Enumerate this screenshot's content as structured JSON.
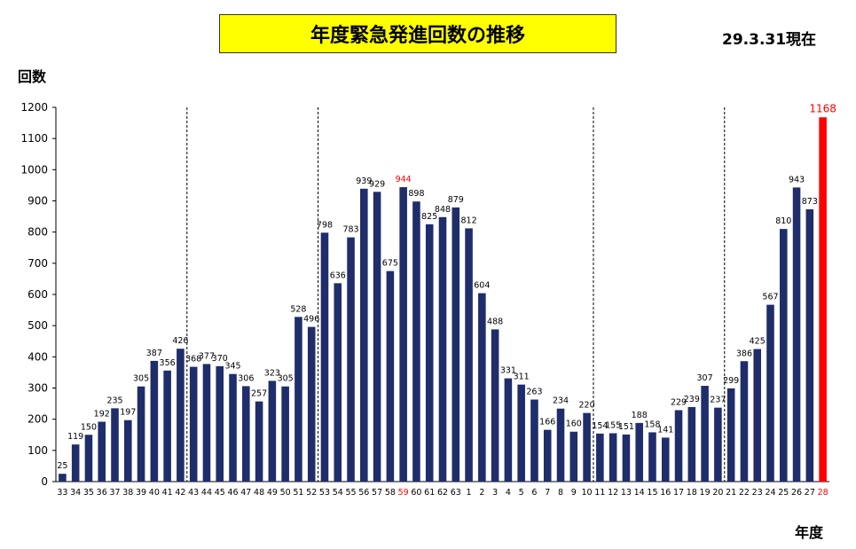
{
  "header": {
    "title": "年度緊急発進回数の推移",
    "date_note": "29.3.31現在"
  },
  "colors": {
    "bar": "#1f2d6b",
    "highlight": "#ff0000",
    "title_bg": "#ffff00"
  },
  "chart_data": {
    "type": "bar",
    "ylabel": "回数",
    "xlabel": "年度",
    "ylim": [
      0,
      1200
    ],
    "yticks": [
      0,
      100,
      200,
      300,
      400,
      500,
      600,
      700,
      800,
      900,
      1000,
      1100,
      1200
    ],
    "categories": [
      "33",
      "34",
      "35",
      "36",
      "37",
      "38",
      "39",
      "40",
      "41",
      "42",
      "43",
      "44",
      "45",
      "46",
      "47",
      "48",
      "49",
      "50",
      "51",
      "52",
      "53",
      "54",
      "55",
      "56",
      "57",
      "58",
      "59",
      "60",
      "61",
      "62",
      "63",
      "1",
      "2",
      "3",
      "4",
      "5",
      "6",
      "7",
      "8",
      "9",
      "10",
      "11",
      "12",
      "13",
      "14",
      "15",
      "16",
      "17",
      "18",
      "19",
      "20",
      "21",
      "22",
      "23",
      "24",
      "25",
      "26",
      "27",
      "28"
    ],
    "values": [
      25,
      119,
      150,
      192,
      235,
      197,
      305,
      387,
      356,
      426,
      368,
      377,
      370,
      345,
      306,
      257,
      323,
      305,
      528,
      496,
      798,
      636,
      783,
      939,
      929,
      675,
      944,
      898,
      825,
      848,
      879,
      812,
      604,
      488,
      331,
      311,
      263,
      166,
      234,
      160,
      220,
      154,
      155,
      151,
      188,
      158,
      141,
      229,
      239,
      307,
      237,
      299,
      386,
      425,
      567,
      810,
      943,
      873,
      1168
    ],
    "highlight_value_labels": [
      "59",
      "28"
    ],
    "highlight_bars": [
      "28"
    ],
    "highlight_categories": [
      "59",
      "28"
    ],
    "dashed_separators_after": [
      "42",
      "52",
      "10",
      "20"
    ],
    "grid": false
  }
}
